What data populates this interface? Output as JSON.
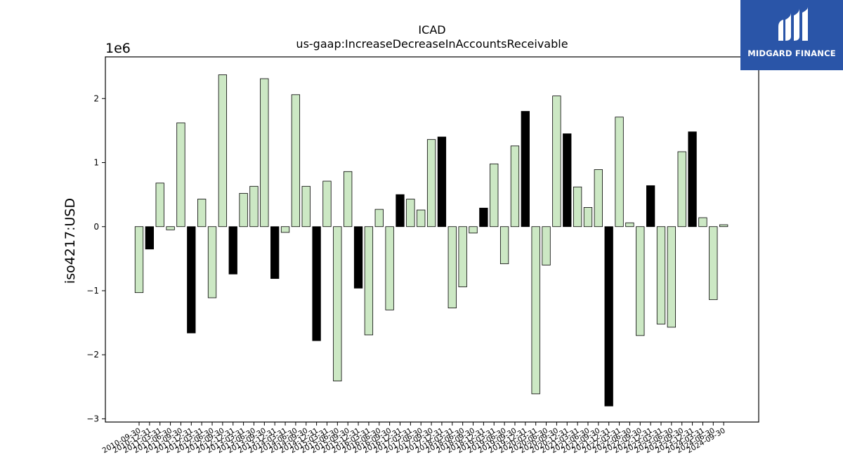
{
  "brand": {
    "name": "MIDGARD FINANCE",
    "bg_color": "#2a55a8"
  },
  "chart_data": {
    "type": "bar",
    "title": "ICAD",
    "subtitle": "us-gaap:IncreaseDecreaseInAccountsReceivable",
    "ylabel": "iso4217:USD",
    "xlabel": "",
    "y_offset_label": "1e6",
    "ylim": [
      -3.05,
      2.65
    ],
    "y_ticks": [
      -3,
      -2,
      -1,
      0,
      1,
      2
    ],
    "y_tick_labels": [
      "−3",
      "−2",
      "−1",
      "0",
      "1",
      "2"
    ],
    "grid": false,
    "fill_color": "#cce8c4",
    "highlight_color": "#000000",
    "edge_color": "#000000",
    "categories": [
      "2010-09-30",
      "2010-12-31",
      "2011-03-31",
      "2011-06-30",
      "2011-09-30",
      "2011-12-31",
      "2012-03-31",
      "2012-06-30",
      "2012-09-30",
      "2012-12-31",
      "2013-03-31",
      "2013-06-30",
      "2013-09-30",
      "2013-12-31",
      "2014-03-31",
      "2014-06-30",
      "2014-09-30",
      "2014-12-31",
      "2015-03-31",
      "2015-06-30",
      "2015-09-30",
      "2015-12-31",
      "2016-03-31",
      "2016-06-30",
      "2016-09-30",
      "2016-12-31",
      "2017-03-31",
      "2017-06-30",
      "2017-09-30",
      "2017-12-31",
      "2018-03-31",
      "2018-06-30",
      "2018-09-30",
      "2018-12-31",
      "2019-03-31",
      "2019-06-30",
      "2019-09-30",
      "2019-12-31",
      "2020-03-31",
      "2020-06-30",
      "2020-09-30",
      "2020-12-31",
      "2021-03-31",
      "2021-06-30",
      "2021-09-30",
      "2021-12-31",
      "2022-03-31",
      "2022-06-30",
      "2022-09-30",
      "2022-12-31",
      "2023-03-31",
      "2023-06-30",
      "2023-09-30",
      "2023-12-31",
      "2024-03-31",
      "2024-06-30",
      "2024-09-30"
    ],
    "values": [
      -1.03,
      -0.35,
      0.68,
      -0.05,
      1.62,
      -1.66,
      0.43,
      -1.11,
      2.37,
      -0.74,
      0.52,
      0.63,
      2.31,
      -0.81,
      -0.09,
      2.06,
      0.63,
      -1.78,
      0.71,
      -2.41,
      0.86,
      -0.96,
      -1.69,
      0.27,
      -1.3,
      0.5,
      0.43,
      0.26,
      1.36,
      1.4,
      -1.27,
      -0.94,
      -0.1,
      0.29,
      0.98,
      -0.58,
      1.26,
      1.8,
      -2.61,
      -0.6,
      2.04,
      1.45,
      0.62,
      0.3,
      0.89,
      -2.8,
      1.71,
      0.06,
      -1.7,
      0.64,
      -1.52,
      -1.57,
      1.17,
      1.48,
      0.14,
      -1.14,
      0.03
    ],
    "highlight": [
      false,
      true,
      false,
      false,
      false,
      true,
      false,
      false,
      false,
      true,
      false,
      false,
      false,
      true,
      false,
      false,
      false,
      true,
      false,
      false,
      false,
      true,
      false,
      false,
      false,
      true,
      false,
      false,
      false,
      true,
      false,
      false,
      false,
      true,
      false,
      false,
      false,
      true,
      false,
      false,
      false,
      true,
      false,
      false,
      false,
      true,
      false,
      false,
      false,
      true,
      false,
      false,
      false,
      true,
      false,
      false,
      false
    ]
  }
}
